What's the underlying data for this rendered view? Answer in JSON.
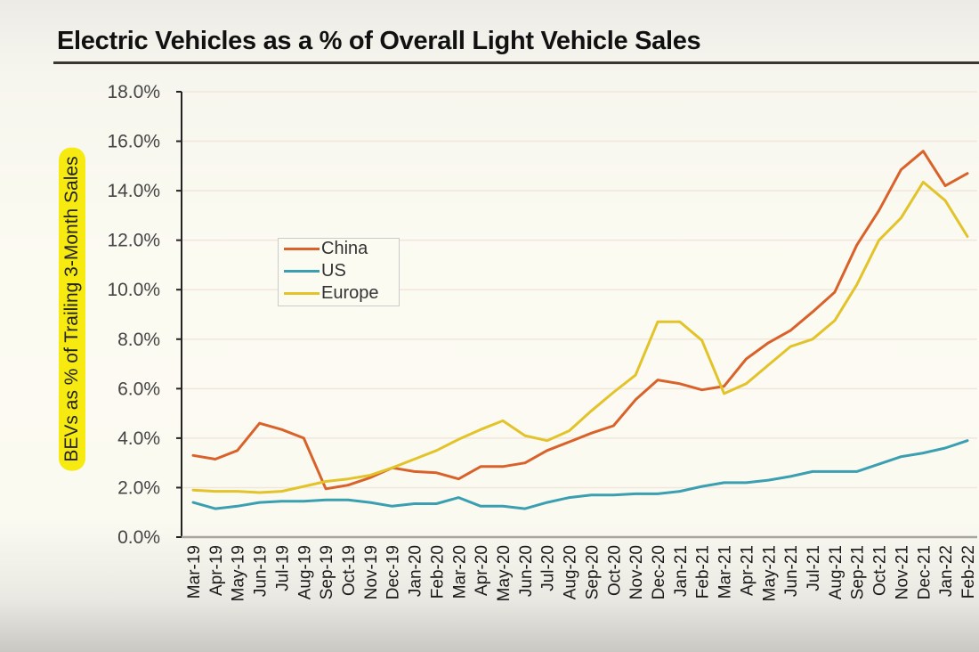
{
  "chart_data": {
    "type": "line",
    "title": "Electric Vehicles as a % of Overall Light Vehicle Sales",
    "xlabel": "",
    "ylabel": "BEVs as % of Trailing 3-Month Sales",
    "ylim": [
      0,
      18
    ],
    "yticks": [
      "0.0%",
      "2.0%",
      "4.0%",
      "6.0%",
      "8.0%",
      "10.0%",
      "12.0%",
      "14.0%",
      "16.0%",
      "18.0%"
    ],
    "ytick_values": [
      0,
      2,
      4,
      6,
      8,
      10,
      12,
      14,
      16,
      18
    ],
    "grid": true,
    "legend_position": "upper-left-center",
    "categories": [
      "Mar-19",
      "Apr-19",
      "May-19",
      "Jun-19",
      "Jul-19",
      "Aug-19",
      "Sep-19",
      "Oct-19",
      "Nov-19",
      "Dec-19",
      "Jan-20",
      "Feb-20",
      "Mar-20",
      "Apr-20",
      "May-20",
      "Jun-20",
      "Jul-20",
      "Aug-20",
      "Sep-20",
      "Oct-20",
      "Nov-20",
      "Dec-20",
      "Jan-21",
      "Feb-21",
      "Mar-21",
      "Apr-21",
      "May-21",
      "Jun-21",
      "Jul-21",
      "Aug-21",
      "Sep-21",
      "Oct-21",
      "Nov-21",
      "Dec-21",
      "Jan-22",
      "Feb-22"
    ],
    "series": [
      {
        "name": "China",
        "color": "#d9622b",
        "values": [
          3.3,
          3.15,
          3.5,
          4.6,
          4.35,
          4.0,
          1.95,
          2.1,
          2.4,
          2.8,
          2.65,
          2.6,
          2.35,
          2.85,
          2.85,
          3.0,
          3.5,
          3.85,
          4.2,
          4.5,
          5.55,
          6.35,
          6.2,
          5.95,
          6.1,
          7.2,
          7.85,
          8.35,
          9.1,
          9.9,
          11.8,
          13.2,
          14.85,
          15.6,
          14.2,
          14.7
        ]
      },
      {
        "name": "US",
        "color": "#3a9fb0",
        "values": [
          1.4,
          1.15,
          1.25,
          1.4,
          1.45,
          1.45,
          1.5,
          1.5,
          1.4,
          1.25,
          1.35,
          1.35,
          1.6,
          1.25,
          1.25,
          1.15,
          1.4,
          1.6,
          1.7,
          1.7,
          1.75,
          1.75,
          1.85,
          2.05,
          2.2,
          2.2,
          2.3,
          2.45,
          2.65,
          2.65,
          2.65,
          2.95,
          3.25,
          3.4,
          3.6,
          3.9
        ]
      },
      {
        "name": "Europe",
        "color": "#e3c32a",
        "values": [
          1.9,
          1.85,
          1.85,
          1.8,
          1.85,
          2.05,
          2.25,
          2.35,
          2.5,
          2.8,
          3.15,
          3.5,
          3.95,
          4.35,
          4.7,
          4.1,
          3.9,
          4.3,
          5.1,
          5.85,
          6.55,
          8.7,
          8.7,
          7.95,
          5.8,
          6.2,
          6.95,
          7.7,
          8.0,
          8.75,
          10.2,
          12.0,
          12.9,
          14.35,
          13.6,
          12.15
        ]
      }
    ]
  },
  "colors": {
    "ylabel_highlight": "#f6ea10"
  }
}
